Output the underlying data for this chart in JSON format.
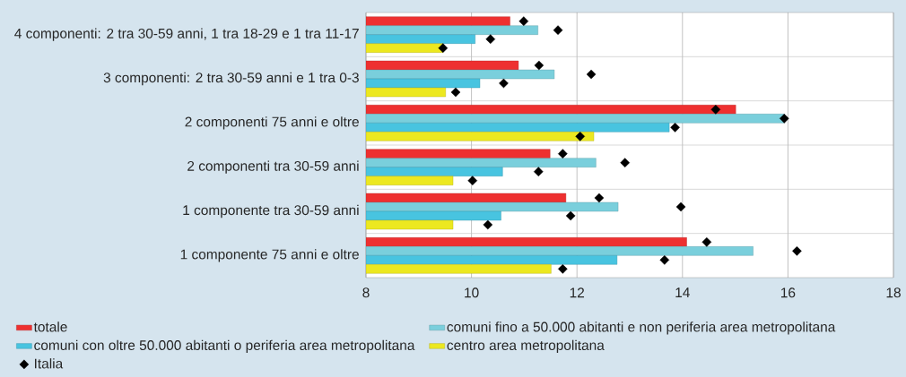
{
  "chart_data": {
    "type": "bar",
    "orientation": "horizontal",
    "categories": [
      "4 componenti: 2 tra 30-59 anni, 1 tra 18-29 e 1 tra 11-17",
      "3 componenti: 2 tra 30-59 anni e 1 tra 0-3",
      "2 componenti 75 anni e oltre",
      "2 componenti tra 30-59 anni",
      "1 componente tra 30-59 anni",
      "1 componente 75 anni e oltre"
    ],
    "series": [
      {
        "name": "totale",
        "color": "#ee3030",
        "values": [
          10.73,
          10.89,
          15.01,
          11.49,
          11.79,
          14.08
        ]
      },
      {
        "name": "comuni fino a 50.000 abitanti e non periferia area metropolitana",
        "color": "#7acfdc",
        "values": [
          11.26,
          11.57,
          15.93,
          12.36,
          12.78,
          15.34
        ]
      },
      {
        "name": "comuni con oltre 50.000 abitanti o periferia area metropolitana",
        "color": "#48c4e0",
        "values": [
          10.07,
          10.16,
          13.75,
          10.59,
          10.56,
          12.76
        ]
      },
      {
        "name": "centro area metropolitana",
        "color": "#ece820",
        "values": [
          9.46,
          9.51,
          12.32,
          9.65,
          9.65,
          11.51
        ]
      },
      {
        "name": "Italia",
        "type": "scatter",
        "color": "#000000",
        "values": [
          10.99,
          11.28,
          14.63,
          11.73,
          12.42,
          14.46
        ]
      },
      {
        "type": "scatter",
        "color": "#000000",
        "values": [
          11.64,
          12.27,
          15.93,
          12.91,
          13.97,
          16.17
        ]
      },
      {
        "type": "scatter",
        "color": "#000000",
        "values": [
          10.36,
          10.61,
          13.86,
          11.27,
          11.88,
          13.66
        ]
      },
      {
        "type": "scatter",
        "color": "#000000",
        "values": [
          9.46,
          9.7,
          12.06,
          10.02,
          10.31,
          11.73
        ]
      }
    ],
    "xlim": [
      8,
      18
    ],
    "xticks": [
      8,
      10,
      12,
      14,
      16,
      18
    ],
    "grid": true,
    "legend": "bottom",
    "marker": "diamond"
  }
}
